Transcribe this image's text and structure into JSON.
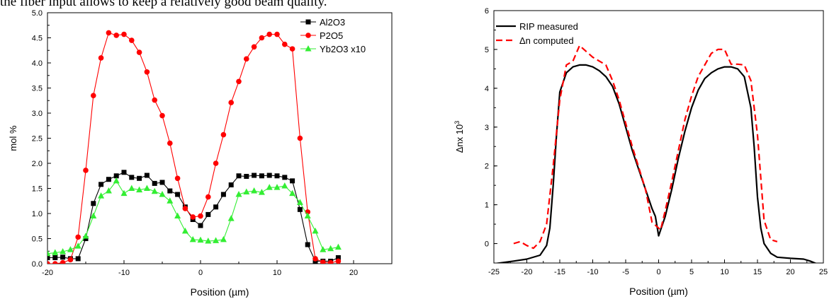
{
  "caption_fragment": "the fiber input allows to keep a relatively good beam quality.",
  "chart_data": [
    {
      "type": "line",
      "title": "",
      "xlabel": "Position (µm)",
      "ylabel": "mol %",
      "xlim": [
        -20,
        25
      ],
      "ylim": [
        0,
        5
      ],
      "xticks": [
        "-20",
        "-10",
        "0",
        "10",
        "20"
      ],
      "yticks": [
        "0.0",
        "0.5",
        "1.0",
        "1.5",
        "2.0",
        "2.5",
        "3.0",
        "3.5",
        "4.0",
        "4.5",
        "5.0"
      ],
      "legend_position": "top-right",
      "series": [
        {
          "name": "Al2O3",
          "color": "#000000",
          "marker": "square",
          "x": [
            -20,
            -19,
            -18,
            -17,
            -16,
            -15,
            -14,
            -13,
            -12,
            -11,
            -10,
            -9,
            -8,
            -7,
            -6,
            -5,
            -4,
            -3,
            -2,
            -1,
            0,
            1,
            2,
            3,
            4,
            5,
            6,
            7,
            8,
            9,
            10,
            11,
            12,
            13,
            14,
            15,
            16,
            17,
            18
          ],
          "y": [
            0.12,
            0.12,
            0.13,
            0.1,
            0.1,
            0.5,
            1.2,
            1.58,
            1.68,
            1.75,
            1.82,
            1.72,
            1.7,
            1.76,
            1.6,
            1.62,
            1.45,
            1.38,
            1.13,
            0.88,
            0.76,
            0.98,
            1.13,
            1.38,
            1.57,
            1.75,
            1.74,
            1.76,
            1.75,
            1.76,
            1.75,
            1.72,
            1.65,
            1.08,
            0.38,
            0.05,
            0.05,
            0.05,
            0.12
          ]
        },
        {
          "name": "P2O5",
          "color": "#ff0000",
          "marker": "circle",
          "x": [
            -20,
            -19,
            -18,
            -17,
            -16,
            -15,
            -14,
            -13,
            -12,
            -11,
            -10,
            -9,
            -8,
            -7,
            -6,
            -5,
            -4,
            -3,
            -2,
            -1,
            0,
            1,
            2,
            3,
            4,
            5,
            6,
            7,
            8,
            9,
            10,
            11,
            12,
            13,
            14,
            15,
            16,
            17,
            18
          ],
          "y": [
            0.0,
            0.0,
            0.02,
            0.08,
            0.53,
            1.86,
            3.35,
            4.1,
            4.6,
            4.55,
            4.57,
            4.45,
            4.21,
            3.82,
            3.26,
            2.95,
            2.4,
            1.7,
            1.1,
            0.93,
            0.95,
            1.33,
            2.0,
            2.57,
            3.21,
            3.63,
            4.08,
            4.32,
            4.5,
            4.57,
            4.57,
            4.37,
            4.28,
            2.5,
            1.03,
            0.1,
            0.03,
            0.02,
            0.05
          ]
        },
        {
          "name": "Yb2O3 x10",
          "color": "#33ee33",
          "marker": "triangle",
          "x": [
            -20,
            -19,
            -18,
            -17,
            -16,
            -15,
            -14,
            -13,
            -12,
            -11,
            -10,
            -9,
            -8,
            -7,
            -6,
            -5,
            -4,
            -3,
            -2,
            -1,
            0,
            1,
            2,
            3,
            4,
            5,
            6,
            7,
            8,
            9,
            10,
            11,
            12,
            13,
            14,
            15,
            16,
            17,
            18
          ],
          "y": [
            0.2,
            0.22,
            0.24,
            0.28,
            0.35,
            0.55,
            0.95,
            1.35,
            1.45,
            1.65,
            1.4,
            1.5,
            1.47,
            1.5,
            1.44,
            1.38,
            1.25,
            0.95,
            0.65,
            0.48,
            0.47,
            0.45,
            0.46,
            0.48,
            0.9,
            1.38,
            1.43,
            1.45,
            1.42,
            1.52,
            1.52,
            1.55,
            1.4,
            1.22,
            0.95,
            0.65,
            0.28,
            0.3,
            0.33
          ]
        }
      ]
    },
    {
      "type": "line",
      "title": "",
      "xlabel": "Position (µm)",
      "ylabel": "Δnx 10",
      "ylabel_exponent": "3",
      "xlim": [
        -25,
        25
      ],
      "ylim": [
        -0.5,
        6
      ],
      "xticks": [
        "-25",
        "-20",
        "-15",
        "-10",
        "-5",
        "0",
        "5",
        "10",
        "15",
        "20",
        "25"
      ],
      "yticks": [
        "0",
        "1",
        "2",
        "3",
        "4",
        "5",
        "6"
      ],
      "legend_position": "top-left",
      "series": [
        {
          "name": "RIP measured",
          "color": "#000000",
          "dash": "solid",
          "x": [
            -25,
            -22,
            -20,
            -18,
            -17,
            -16.5,
            -16,
            -15.5,
            -15,
            -14,
            -13,
            -12,
            -11,
            -10,
            -9,
            -8,
            -7,
            -6,
            -5,
            -4,
            -3,
            -2,
            -1,
            -0.5,
            0,
            0.3,
            0.6,
            1,
            2,
            3,
            4,
            5,
            6,
            7,
            8,
            9,
            10,
            11,
            12,
            13,
            14,
            14.5,
            15,
            15.5,
            16,
            17,
            18,
            20,
            22,
            23,
            24
          ],
          "y": [
            -0.52,
            -0.45,
            -0.4,
            -0.3,
            -0.05,
            0.4,
            1.5,
            2.8,
            3.9,
            4.4,
            4.55,
            4.6,
            4.6,
            4.55,
            4.45,
            4.3,
            4.05,
            3.6,
            3.0,
            2.4,
            1.9,
            1.4,
            0.9,
            0.7,
            0.2,
            0.35,
            0.5,
            0.7,
            1.4,
            2.2,
            2.9,
            3.5,
            3.95,
            4.25,
            4.4,
            4.5,
            4.55,
            4.55,
            4.5,
            4.3,
            3.5,
            2.5,
            1.2,
            0.4,
            0.0,
            -0.25,
            -0.35,
            -0.38,
            -0.4,
            -0.45,
            -0.52
          ]
        },
        {
          "name": "Δn computed",
          "color": "#ff0000",
          "dash": "dashed",
          "x": [
            -22,
            -21,
            -20,
            -19,
            -18,
            -17,
            -16,
            -15,
            -14,
            -13,
            -12,
            -11,
            -10,
            -9,
            -8,
            -7,
            -6,
            -5,
            -4,
            -3,
            -2,
            -1,
            0,
            0.3,
            1,
            2,
            3,
            4,
            5,
            6,
            7,
            8,
            9,
            10,
            11,
            12,
            13,
            14,
            15,
            16,
            17,
            18
          ],
          "y": [
            0.0,
            0.05,
            -0.05,
            -0.12,
            0.05,
            0.5,
            2.0,
            3.7,
            4.6,
            4.7,
            5.1,
            4.95,
            4.8,
            4.7,
            4.6,
            4.2,
            3.7,
            3.1,
            2.5,
            1.95,
            1.4,
            0.55,
            0.4,
            0.35,
            0.85,
            1.6,
            2.4,
            3.2,
            3.8,
            4.3,
            4.6,
            4.9,
            5.0,
            5.0,
            4.62,
            4.62,
            4.6,
            4.2,
            2.8,
            0.6,
            0.1,
            0.05
          ]
        }
      ]
    }
  ]
}
